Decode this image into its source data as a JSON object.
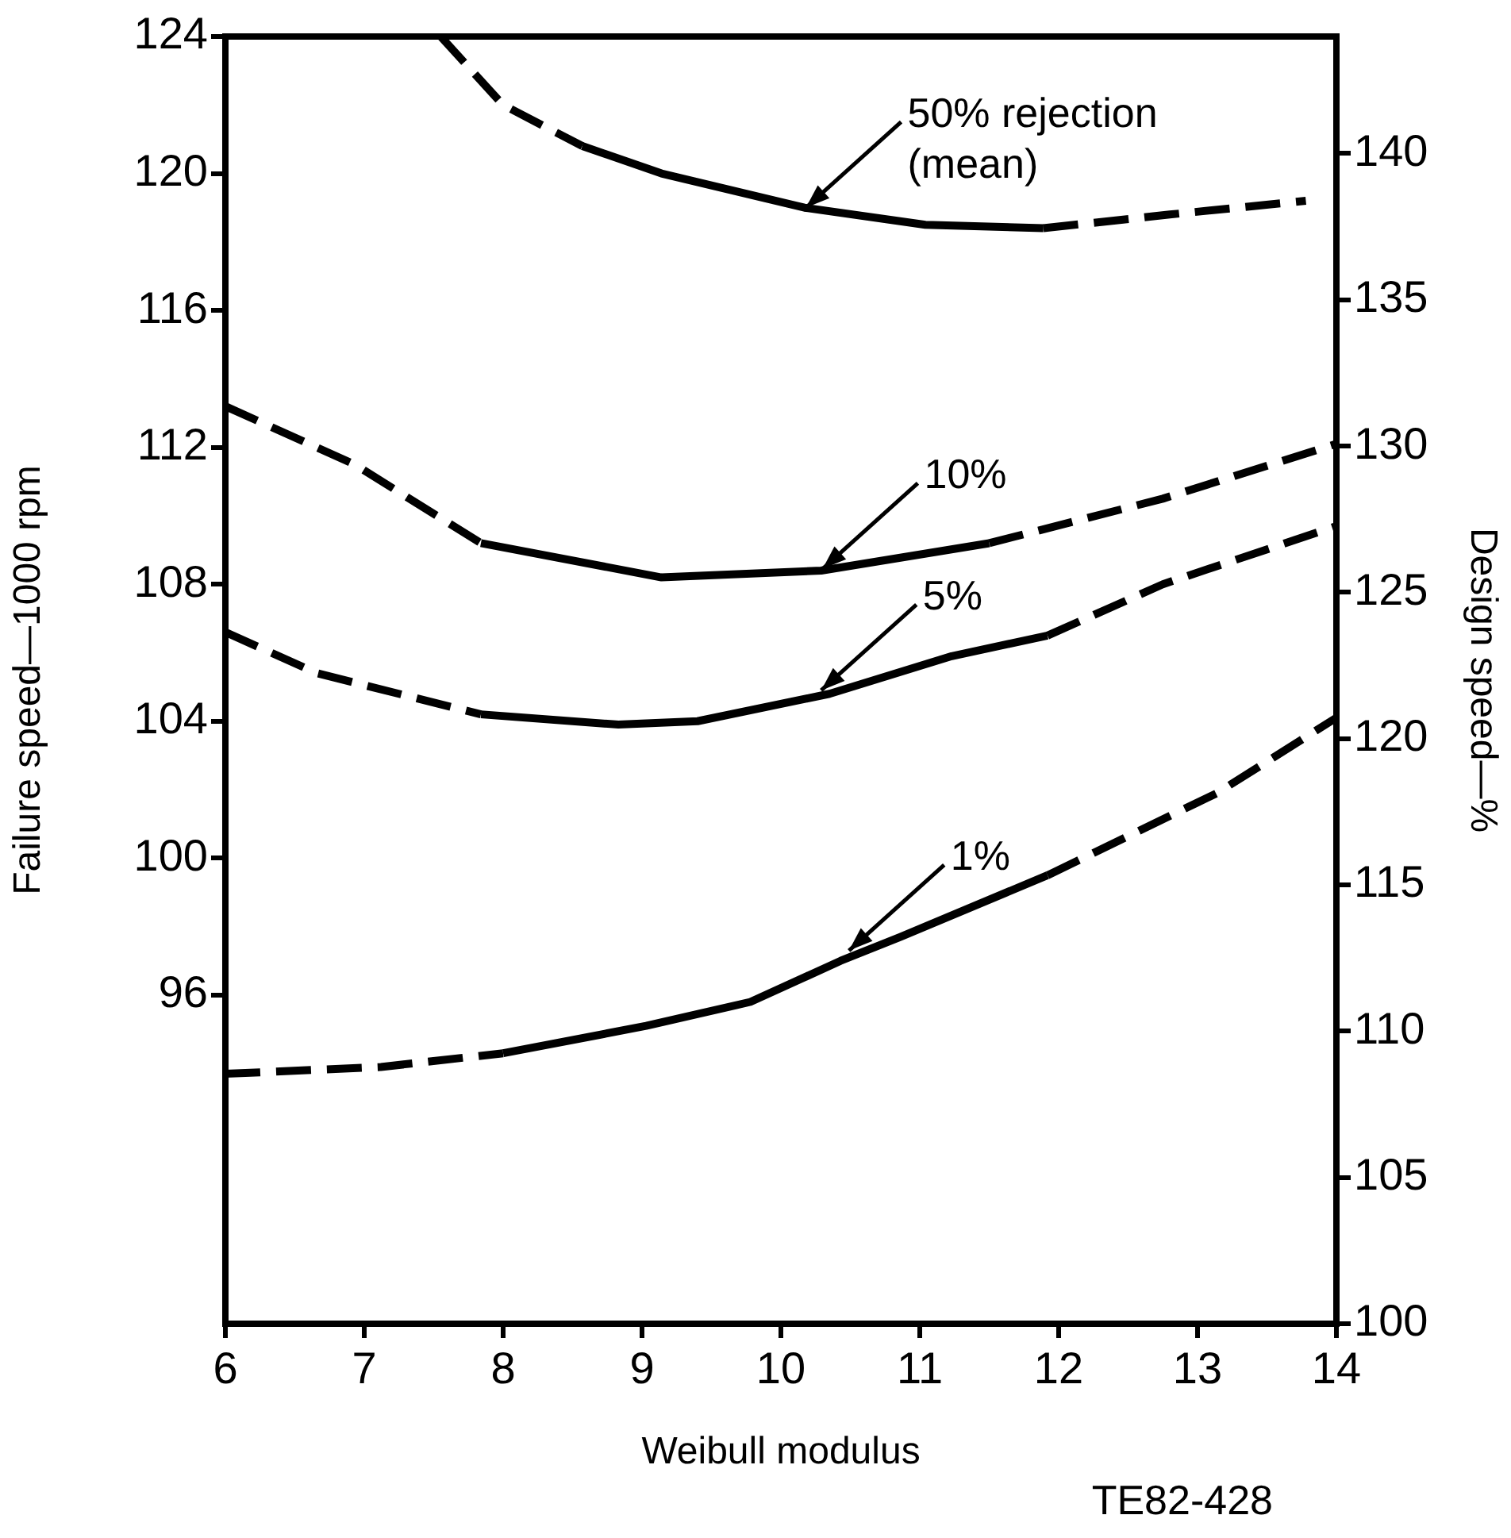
{
  "chart_data": {
    "type": "line",
    "xlabel": "Weibull modulus",
    "ylabel": "Failure speed—1000 rpm",
    "y2label": "Design speed—%",
    "xlim": [
      6,
      14
    ],
    "xticks": [
      6,
      7,
      8,
      9,
      10,
      11,
      12,
      13,
      14
    ],
    "ylim": [
      86.4,
      124
    ],
    "yticks": [
      96,
      100,
      104,
      108,
      112,
      116,
      120,
      124
    ],
    "y2lim": [
      100,
      144
    ],
    "y2ticks": [
      100,
      105,
      110,
      115,
      120,
      125,
      130,
      135,
      140
    ],
    "series": [
      {
        "color": "#000000",
        "line_style": "dashed",
        "x": [
          7.55,
          8.0,
          8.57
        ],
        "values": [
          124,
          122.0,
          120.8
        ]
      },
      {
        "color": "#000000",
        "line_style": "solid",
        "x": [
          8.57,
          9.14,
          10.17,
          11.04,
          11.89
        ],
        "values": [
          120.8,
          120.0,
          119.0,
          118.5,
          118.4
        ]
      },
      {
        "color": "#000000",
        "line_style": "dashed",
        "x": [
          11.89,
          12.8,
          13.78
        ],
        "values": [
          118.4,
          118.8,
          119.2
        ]
      },
      {
        "color": "#000000",
        "line_style": "dashed",
        "x": [
          6,
          6.93,
          7.84
        ],
        "values": [
          113.2,
          111.5,
          109.2
        ]
      },
      {
        "color": "#000000",
        "line_style": "solid",
        "x": [
          7.84,
          9.14,
          10.29,
          11.5
        ],
        "values": [
          109.2,
          108.2,
          108.4,
          109.2
        ]
      },
      {
        "color": "#000000",
        "line_style": "dashed",
        "x": [
          11.5,
          12.75,
          14
        ],
        "values": [
          109.2,
          110.5,
          112.1
        ]
      },
      {
        "color": "#000000",
        "line_style": "dashed",
        "x": [
          6,
          6.66,
          7.84
        ],
        "values": [
          106.6,
          105.4,
          104.2
        ]
      },
      {
        "color": "#000000",
        "line_style": "solid",
        "x": [
          7.84,
          8.83,
          9.4,
          10.35,
          11.23,
          11.92
        ],
        "values": [
          104.2,
          103.9,
          104.0,
          104.8,
          105.9,
          106.5
        ]
      },
      {
        "color": "#000000",
        "line_style": "dashed",
        "x": [
          11.92,
          12.75,
          14
        ],
        "values": [
          106.5,
          108.0,
          109.7
        ]
      },
      {
        "color": "#000000",
        "line_style": "dashed",
        "x": [
          6,
          7.12,
          8.0
        ],
        "values": [
          93.7,
          93.9,
          94.3
        ]
      },
      {
        "color": "#000000",
        "line_style": "solid",
        "x": [
          8.0,
          9.03,
          9.78,
          10.43,
          10.86,
          11.92
        ],
        "values": [
          94.3,
          95.1,
          95.8,
          97.0,
          97.7,
          99.5
        ]
      },
      {
        "color": "#000000",
        "line_style": "dashed",
        "x": [
          11.92,
          13.14,
          14
        ],
        "values": [
          99.5,
          101.9,
          104.1
        ]
      }
    ],
    "annotations": [
      {
        "text": "50% rejection (mean)",
        "x": 10.18,
        "y": 119.0
      },
      {
        "text": "10%",
        "x": 10.3,
        "y": 108.45
      },
      {
        "text": "5%",
        "x": 10.29,
        "y": 104.9
      },
      {
        "text": "1%",
        "x": 10.49,
        "y": 97.3
      },
      "TE82-428"
    ]
  }
}
